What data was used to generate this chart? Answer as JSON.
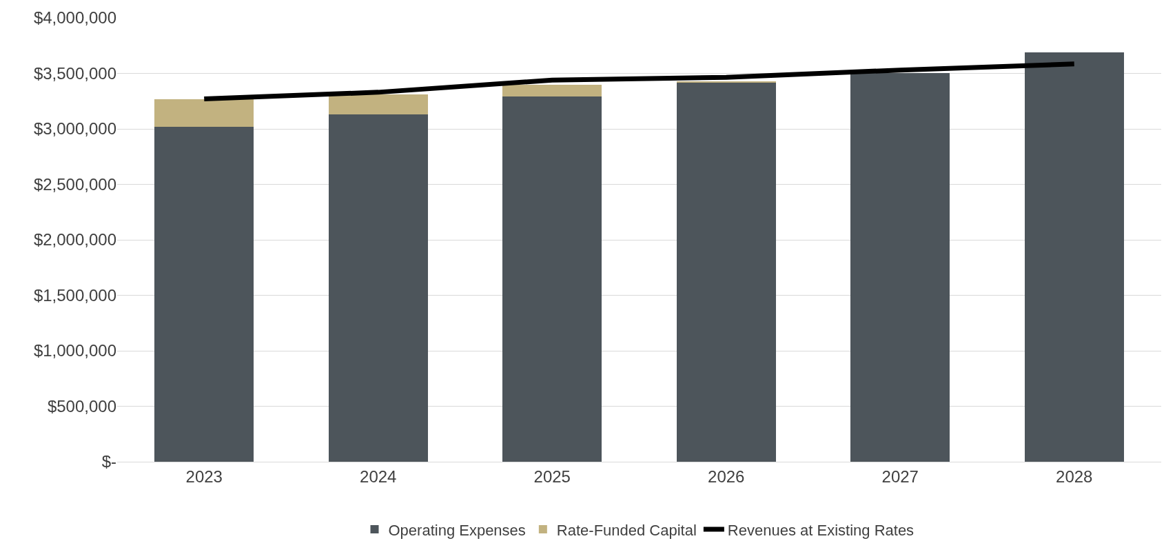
{
  "chart_data": {
    "type": "bar",
    "stacked": true,
    "categories": [
      "2023",
      "2024",
      "2025",
      "2026",
      "2027",
      "2028"
    ],
    "series": [
      {
        "name": "Operating Expenses",
        "color": "#4d555b",
        "values": [
          3020000,
          3130000,
          3290000,
          3415000,
          3505000,
          3690000
        ]
      },
      {
        "name": "Rate-Funded Capital",
        "color": "#c2b280",
        "values": [
          250000,
          180000,
          110000,
          15000,
          0,
          0
        ]
      },
      {
        "name": "Revenues at Existing Rates",
        "type": "line",
        "color": "#000000",
        "values": [
          3270000,
          3330000,
          3440000,
          3465000,
          3530000,
          3585000
        ]
      }
    ],
    "ylim": [
      0,
      4000000
    ],
    "yticks": [
      {
        "value": 0,
        "label": "$-"
      },
      {
        "value": 500000,
        "label": "$500,000"
      },
      {
        "value": 1000000,
        "label": "$1,000,000"
      },
      {
        "value": 1500000,
        "label": "$1,500,000"
      },
      {
        "value": 2000000,
        "label": "$2,000,000"
      },
      {
        "value": 2500000,
        "label": "$2,500,000"
      },
      {
        "value": 3000000,
        "label": "$3,000,000"
      },
      {
        "value": 3500000,
        "label": "$3,500,000"
      },
      {
        "value": 4000000,
        "label": "$4,000,000"
      }
    ],
    "grid": "y",
    "legend": "bottom",
    "marker": "none",
    "line_style": "solid"
  }
}
